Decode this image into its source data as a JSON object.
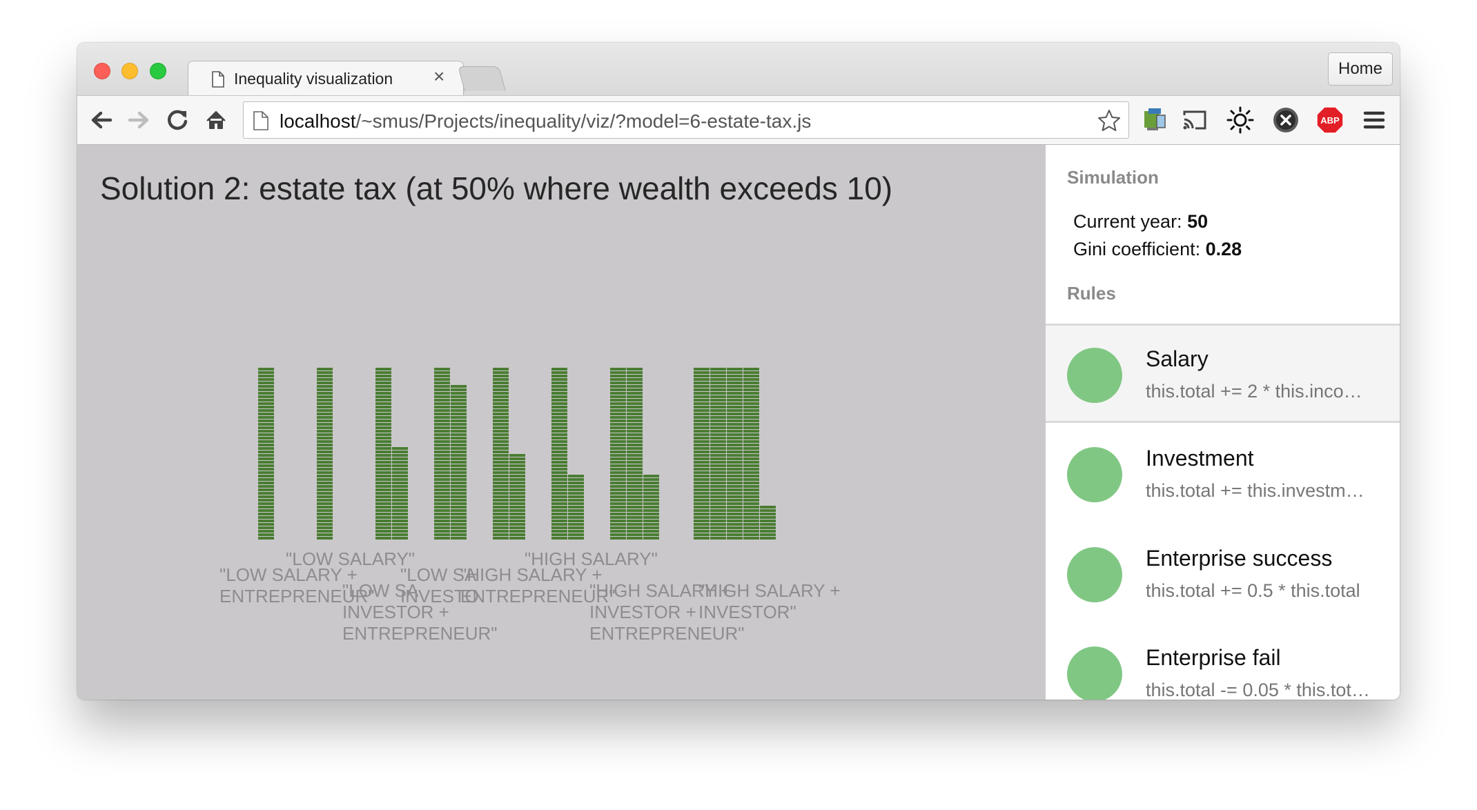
{
  "tab": {
    "title": "Inequality visualization",
    "close": "×"
  },
  "window": {
    "home_label": "Home"
  },
  "address": {
    "host": "localhost",
    "path": "/~smus/Projects/inequality/viz/?model=6-estate-tax.js"
  },
  "page": {
    "title": "Solution 2: estate tax (at 50% where wealth exceeds 10)"
  },
  "sidebar": {
    "simulation_label": "Simulation",
    "current_year_label": "Current year:",
    "current_year": "50",
    "gini_label": "Gini coefficient:",
    "gini": "0.28",
    "rules_label": "Rules",
    "rules": [
      {
        "name": "Salary",
        "code": "this.total += 2 * this.inco…"
      },
      {
        "name": "Investment",
        "code": "this.total += this.investm…"
      },
      {
        "name": "Enterprise success",
        "code": "this.total += 0.5 * this.total"
      },
      {
        "name": "Enterprise fail",
        "code": "this.total -= 0.05 * this.tot…"
      }
    ]
  },
  "icons": [
    "page-icon",
    "back-arrow-icon",
    "forward-arrow-icon",
    "reload-icon",
    "home-icon",
    "star-icon",
    "extension-icon",
    "cast-icon",
    "brightness-icon",
    "close-circle-icon",
    "adblock-icon",
    "menu-icon"
  ],
  "colors": {
    "bar_fill": "#4a7d33",
    "rule_dot": "#81c784",
    "content_bg": "#cac8cb"
  },
  "chart_data": {
    "type": "bar",
    "note_style": "stacked unit blocks per group",
    "groups": [
      {
        "label_lines": [],
        "columns": [
          50
        ]
      },
      {
        "label_lines": [],
        "columns": [
          50
        ]
      },
      {
        "label_lines": [],
        "columns": [
          50,
          27
        ]
      },
      {
        "label_lines": [],
        "columns": [
          50,
          45
        ]
      },
      {
        "label_lines": [],
        "columns": [
          50,
          25
        ]
      },
      {
        "label_lines": [],
        "columns": [
          50,
          19
        ]
      },
      {
        "label_lines": [],
        "columns": [
          50,
          50,
          19
        ]
      },
      {
        "label_lines": [],
        "columns": [
          50,
          50,
          50,
          50,
          10
        ]
      }
    ],
    "category_labels": [
      {
        "lines": [
          "\"LOW SALARY\""
        ]
      },
      {
        "lines": [
          "\"LOW SALARY +",
          "ENTREPRENEUR\""
        ]
      },
      {
        "lines": [
          "\"LOW SA",
          "INVESTOR +",
          "ENTREPRENEUR\""
        ]
      },
      {
        "lines": [
          "\"LOW SA",
          "INVESTO"
        ]
      },
      {
        "lines": [
          "\"HIGH SALARY +",
          "ENTREPRENEUR\""
        ]
      },
      {
        "lines": [
          "\"HIGH SALARY\""
        ]
      },
      {
        "lines": [
          "\"HIGH SALARY +",
          "INVESTOR +",
          "ENTREPRENEUR\""
        ]
      },
      {
        "lines": [
          "\"HIGH SALARY +",
          "INVESTOR\""
        ]
      }
    ]
  }
}
